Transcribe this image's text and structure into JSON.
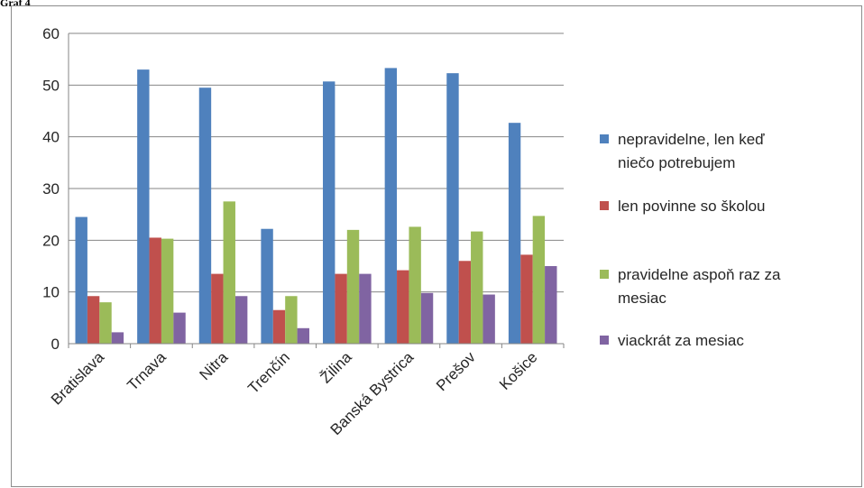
{
  "page_label": "Graf 4",
  "chart_data": {
    "type": "bar",
    "title": "",
    "xlabel": "",
    "ylabel": "",
    "ylim": [
      0,
      60
    ],
    "yticks": [
      0,
      10,
      20,
      30,
      40,
      50,
      60
    ],
    "grid": true,
    "legend_position": "right",
    "categories": [
      "Bratislava",
      "Trnava",
      "Nitra",
      "Trenčín",
      "Žilina",
      "Banská Bystrica",
      "Prešov",
      "Košice"
    ],
    "series": [
      {
        "name": "nepravidelne, len keď niečo potrebujem",
        "legend_lines": [
          "nepravidelne, len keď",
          "niečo potrebujem"
        ],
        "color": "#4f81bd",
        "values": [
          24.5,
          53,
          49.5,
          22.2,
          50.7,
          53.3,
          52.3,
          42.7
        ]
      },
      {
        "name": "len povinne so školou",
        "legend_lines": [
          "len povinne so školou"
        ],
        "color": "#c0504d",
        "values": [
          9.2,
          20.5,
          13.5,
          6.5,
          13.5,
          14.2,
          16,
          17.2
        ]
      },
      {
        "name": "pravidelne aspoň raz za mesiac",
        "legend_lines": [
          "pravidelne aspoň raz za",
          "mesiac"
        ],
        "color": "#9bbb59",
        "values": [
          8,
          20.3,
          27.5,
          9.2,
          22,
          22.6,
          21.7,
          24.7
        ]
      },
      {
        "name": "viackrát za mesiac",
        "legend_lines": [
          "viackrát za mesiac"
        ],
        "color": "#8064a2",
        "values": [
          2.2,
          6,
          9.2,
          3,
          13.5,
          9.8,
          9.5,
          15
        ]
      }
    ]
  }
}
